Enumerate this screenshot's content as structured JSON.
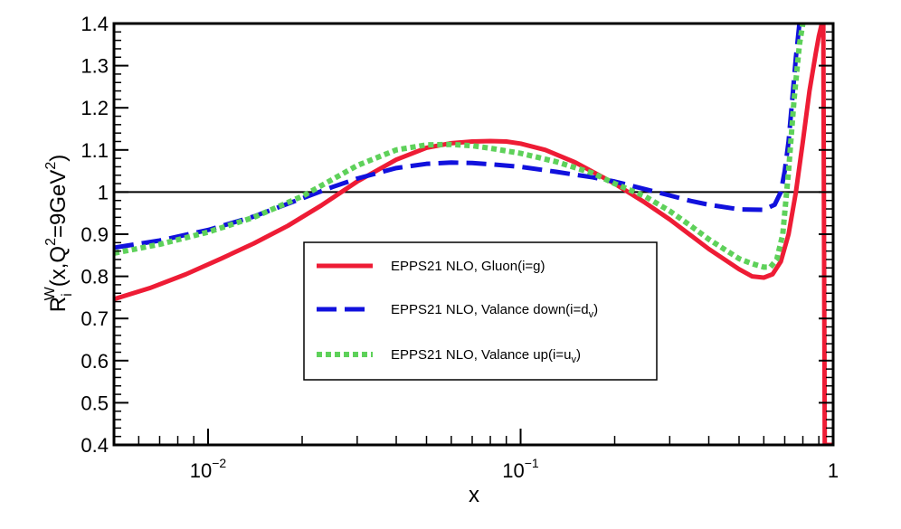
{
  "chart_data": {
    "type": "line",
    "title": "",
    "xlabel": "x",
    "ylabel": "R_i^W(x,Q^2=9GeV^2)",
    "ylabel_parts": {
      "base": "R",
      "sub": "i",
      "sup": "W",
      "args": "(x,Q",
      "q_sup": "2",
      "mid": "=9GeV",
      "gev_sup": "2",
      "end": ")"
    },
    "x_scale": "log",
    "xlim": [
      0.005,
      1.0
    ],
    "ylim": [
      0.4,
      1.4
    ],
    "x_ticks": [
      {
        "value": 0.01,
        "base": "10",
        "exp": "−2"
      },
      {
        "value": 0.1,
        "base": "10",
        "exp": "−1"
      },
      {
        "value": 1.0,
        "base": "1",
        "exp": ""
      }
    ],
    "y_ticks": [
      {
        "value": 0.4,
        "label": "0.4"
      },
      {
        "value": 0.5,
        "label": "0.5"
      },
      {
        "value": 0.6,
        "label": "0.6"
      },
      {
        "value": 0.7,
        "label": "0.7"
      },
      {
        "value": 0.8,
        "label": "0.8"
      },
      {
        "value": 0.9,
        "label": "0.9"
      },
      {
        "value": 1.0,
        "label": "1"
      },
      {
        "value": 1.1,
        "label": "1.1"
      },
      {
        "value": 1.2,
        "label": "1.2"
      },
      {
        "value": 1.3,
        "label": "1.3"
      },
      {
        "value": 1.4,
        "label": "1.4"
      }
    ],
    "reference_line": {
      "y": 1.0,
      "color": "#000000"
    },
    "legend": {
      "position": "center"
    },
    "series": [
      {
        "name": "EPPS21 NLO, Gluon(i=g)",
        "legend_label": "EPPS21 NLO, Gluon(i=g)",
        "legend_sub": "",
        "legend_tail": "",
        "color": "#ee1c35",
        "style": "solid",
        "x": [
          0.005,
          0.0065,
          0.0085,
          0.011,
          0.014,
          0.018,
          0.023,
          0.03,
          0.04,
          0.05,
          0.06,
          0.07,
          0.08,
          0.09,
          0.1,
          0.12,
          0.15,
          0.2,
          0.25,
          0.3,
          0.4,
          0.5,
          0.55,
          0.6,
          0.64,
          0.68,
          0.72,
          0.76,
          0.8,
          0.84,
          0.88,
          0.9,
          0.92,
          0.93,
          0.94,
          0.96,
          0.98,
          0.99
        ],
        "y": [
          0.746,
          0.772,
          0.805,
          0.842,
          0.878,
          0.92,
          0.968,
          1.025,
          1.077,
          1.105,
          1.116,
          1.12,
          1.121,
          1.12,
          1.115,
          1.1,
          1.07,
          1.02,
          0.975,
          0.935,
          0.865,
          0.817,
          0.8,
          0.797,
          0.805,
          0.835,
          0.9,
          1.0,
          1.12,
          1.24,
          1.33,
          1.37,
          1.4,
          1.4,
          0.4,
          0.4,
          0.4,
          0.4
        ]
      },
      {
        "name": "EPPS21 NLO, Valance down(i=dv)",
        "legend_label": "EPPS21 NLO, Valance down(i=d",
        "legend_sub": "v",
        "legend_tail": ")",
        "color": "#1111dd",
        "style": "long-dash",
        "x": [
          0.005,
          0.007,
          0.01,
          0.014,
          0.02,
          0.025,
          0.03,
          0.04,
          0.05,
          0.06,
          0.07,
          0.08,
          0.1,
          0.13,
          0.17,
          0.2,
          0.25,
          0.3,
          0.35,
          0.4,
          0.5,
          0.6,
          0.65,
          0.68,
          0.7,
          0.72,
          0.74,
          0.76,
          0.78
        ],
        "y": [
          0.868,
          0.885,
          0.91,
          0.942,
          0.985,
          1.012,
          1.032,
          1.057,
          1.067,
          1.07,
          1.069,
          1.066,
          1.06,
          1.048,
          1.035,
          1.025,
          1.007,
          0.992,
          0.979,
          0.97,
          0.959,
          0.958,
          0.97,
          1.0,
          1.05,
          1.12,
          1.22,
          1.32,
          1.4
        ]
      },
      {
        "name": "EPPS21 NLO, Valance up(i=uv)",
        "legend_label": "EPPS21 NLO, Valance up(i=u",
        "legend_sub": "v",
        "legend_tail": ")",
        "color": "#5ed15a",
        "style": "dotted",
        "x": [
          0.005,
          0.007,
          0.01,
          0.014,
          0.02,
          0.025,
          0.03,
          0.04,
          0.05,
          0.06,
          0.07,
          0.08,
          0.1,
          0.13,
          0.17,
          0.2,
          0.25,
          0.3,
          0.35,
          0.4,
          0.5,
          0.55,
          0.6,
          0.63,
          0.66,
          0.69,
          0.72,
          0.75,
          0.78,
          0.8
        ],
        "y": [
          0.855,
          0.876,
          0.905,
          0.94,
          0.99,
          1.03,
          1.063,
          1.1,
          1.112,
          1.113,
          1.11,
          1.104,
          1.092,
          1.072,
          1.045,
          1.02,
          0.99,
          0.955,
          0.92,
          0.888,
          0.842,
          0.83,
          0.822,
          0.822,
          0.84,
          0.9,
          1.05,
          1.22,
          1.35,
          1.4
        ]
      }
    ]
  }
}
